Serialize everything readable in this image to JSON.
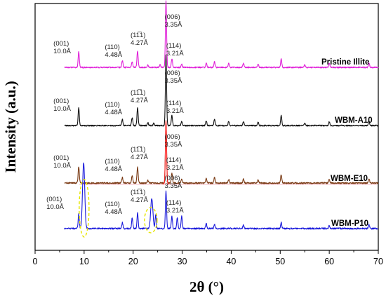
{
  "chart_data": {
    "type": "line",
    "xlabel": "2θ (°)",
    "ylabel": "Intensity (a.u.)",
    "xlim": [
      0,
      70
    ],
    "x_ticks": [
      0,
      10,
      20,
      30,
      40,
      50,
      60,
      70
    ],
    "y_ticks_shown": false,
    "series": [
      {
        "name": "Pristine Illite",
        "color": "#e020d8",
        "baseline": 0,
        "peaks": [
          [
            8.9,
            0.32
          ],
          [
            17.8,
            0.14
          ],
          [
            19.8,
            0.12
          ],
          [
            20.9,
            0.34
          ],
          [
            23.0,
            0.05
          ],
          [
            25.5,
            0.06
          ],
          [
            26.7,
            1.35
          ],
          [
            27.9,
            0.18
          ],
          [
            29.9,
            0.07
          ],
          [
            34.9,
            0.09
          ],
          [
            36.6,
            0.12
          ],
          [
            39.5,
            0.08
          ],
          [
            42.5,
            0.08
          ],
          [
            45.5,
            0.07
          ],
          [
            50.2,
            0.17
          ],
          [
            55.0,
            0.05
          ],
          [
            60.0,
            0.08
          ],
          [
            68.1,
            0.09
          ]
        ]
      },
      {
        "name": "WBM-A10",
        "color": "#111111",
        "baseline": 0,
        "peaks": [
          [
            8.9,
            0.36
          ],
          [
            17.8,
            0.12
          ],
          [
            19.8,
            0.16
          ],
          [
            20.9,
            0.36
          ],
          [
            23.0,
            0.06
          ],
          [
            24.2,
            0.05
          ],
          [
            26.7,
            1.4
          ],
          [
            27.9,
            0.2
          ],
          [
            29.9,
            0.08
          ],
          [
            34.9,
            0.1
          ],
          [
            36.6,
            0.13
          ],
          [
            39.5,
            0.09
          ],
          [
            42.5,
            0.08
          ],
          [
            45.5,
            0.07
          ],
          [
            50.2,
            0.2
          ],
          [
            55.0,
            0.05
          ],
          [
            60.0,
            0.08
          ],
          [
            68.1,
            0.1
          ]
        ]
      },
      {
        "name": "WBM-E10",
        "color": "#7a3a14",
        "overlay_color": "#ff2020",
        "baseline": 0,
        "peaks": [
          [
            8.9,
            0.3
          ],
          [
            17.8,
            0.1
          ],
          [
            19.8,
            0.14
          ],
          [
            20.9,
            0.3
          ],
          [
            23.0,
            0.05
          ],
          [
            26.7,
            1.15
          ],
          [
            27.9,
            0.18
          ],
          [
            29.9,
            0.07
          ],
          [
            34.9,
            0.09
          ],
          [
            36.6,
            0.1
          ],
          [
            39.5,
            0.07
          ],
          [
            42.5,
            0.07
          ],
          [
            45.5,
            0.06
          ],
          [
            50.2,
            0.15
          ],
          [
            60.0,
            0.07
          ],
          [
            68.1,
            0.08
          ]
        ]
      },
      {
        "name": "WBM-P10",
        "color": "#1a1adb",
        "baseline": 0,
        "peaks": [
          [
            8.9,
            0.24
          ],
          [
            9.9,
            1.1
          ],
          [
            17.8,
            0.1
          ],
          [
            19.8,
            0.18
          ],
          [
            20.9,
            0.26
          ],
          [
            23.8,
            0.5
          ],
          [
            24.6,
            0.22
          ],
          [
            26.7,
            0.62
          ],
          [
            27.9,
            0.2
          ],
          [
            29.0,
            0.18
          ],
          [
            29.9,
            0.2
          ],
          [
            34.9,
            0.08
          ],
          [
            36.6,
            0.07
          ],
          [
            42.5,
            0.06
          ],
          [
            50.2,
            0.1
          ],
          [
            60.0,
            0.05
          ],
          [
            68.1,
            0.07
          ]
        ]
      }
    ],
    "annotations": [
      {
        "hkl": "(001)",
        "d": "10.0Å",
        "x": 8.9
      },
      {
        "hkl": "(110)",
        "d": "4.48Å",
        "x": 19.8
      },
      {
        "hkl": "(11̅1)",
        "d": "4.27Å",
        "x": 20.9
      },
      {
        "hkl": "(006)",
        "d": "3.35Å",
        "x": 26.7
      },
      {
        "hkl": "(114)",
        "d": "3.21Å",
        "x": 27.9
      }
    ]
  }
}
